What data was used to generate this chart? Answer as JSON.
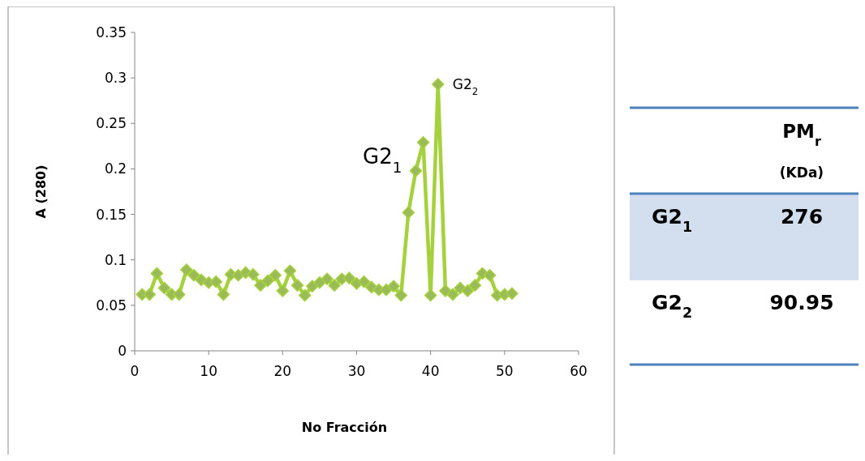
{
  "chart_data": [
    {
      "type": "line",
      "xlabel": "No Fracción",
      "ylabel": "A (280)",
      "x": [
        1,
        2,
        3,
        4,
        5,
        6,
        7,
        8,
        9,
        10,
        11,
        12,
        13,
        14,
        15,
        16,
        17,
        18,
        19,
        20,
        21,
        22,
        23,
        24,
        25,
        26,
        27,
        28,
        29,
        30,
        31,
        32,
        33,
        34,
        35,
        36,
        37,
        38,
        39,
        40,
        41,
        42,
        43,
        44,
        45,
        46,
        47,
        48,
        49,
        50,
        51
      ],
      "series": [
        {
          "color": "#9bbb59",
          "values": [
            0.062,
            0.062,
            0.085,
            0.069,
            0.062,
            0.062,
            0.089,
            0.083,
            0.078,
            0.075,
            0.076,
            0.062,
            0.084,
            0.083,
            0.086,
            0.084,
            0.072,
            0.077,
            0.083,
            0.066,
            0.088,
            0.072,
            0.061,
            0.071,
            0.075,
            0.079,
            0.072,
            0.079,
            0.08,
            0.074,
            0.076,
            0.07,
            0.067,
            0.067,
            0.071,
            0.061,
            0.152,
            0.198,
            0.229,
            0.061,
            0.293,
            0.066,
            0.062,
            0.069,
            0.066,
            0.072,
            0.085,
            0.083,
            0.061,
            0.062,
            0.063
          ]
        }
      ],
      "xlim": [
        0,
        60
      ],
      "xticks": [
        0,
        10,
        20,
        30,
        40,
        50,
        60
      ],
      "ylim": [
        0,
        0.35
      ],
      "yticks": [
        0,
        0.05,
        0.1,
        0.15,
        0.2,
        0.25,
        0.3,
        0.35
      ],
      "grid": false,
      "marker": "diamond",
      "line_style": "solid",
      "annotations": [
        {
          "text": "G2$_{1}$",
          "x": 37,
          "y": 0.152
        },
        {
          "text": "G2$_{2}$",
          "x": 41,
          "y": 0.293
        }
      ]
    },
    {
      "type": "other",
      "title": "PM$_{r}$",
      "subtitle": "(KDa)",
      "categories": [
        "G2$_{1}$",
        "G2$_{2}$"
      ],
      "values": [
        276,
        90.95
      ],
      "data_labels": true
    }
  ]
}
